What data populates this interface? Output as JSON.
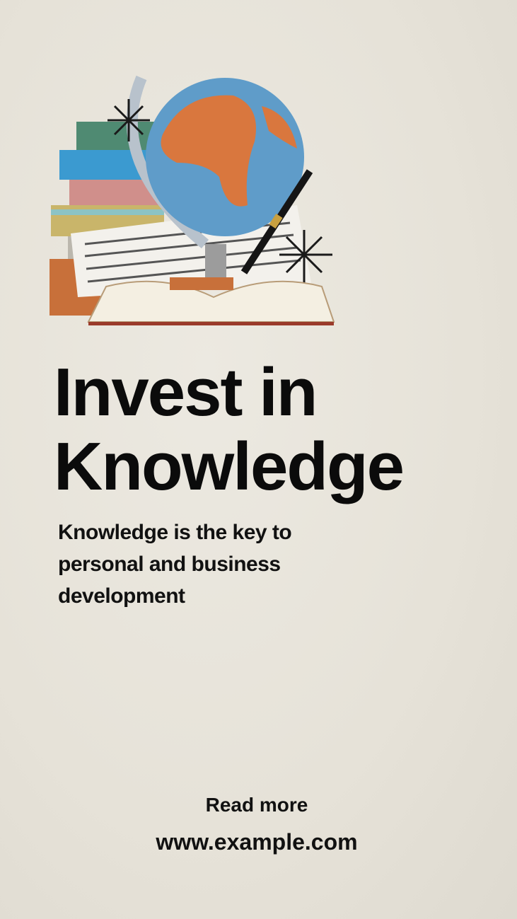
{
  "headline": {
    "line1": "Invest in",
    "line2": "Knowledge"
  },
  "subtitle": "Knowledge is the key to personal and business development",
  "footer": {
    "cta": "Read more",
    "url": "www.example.com"
  }
}
